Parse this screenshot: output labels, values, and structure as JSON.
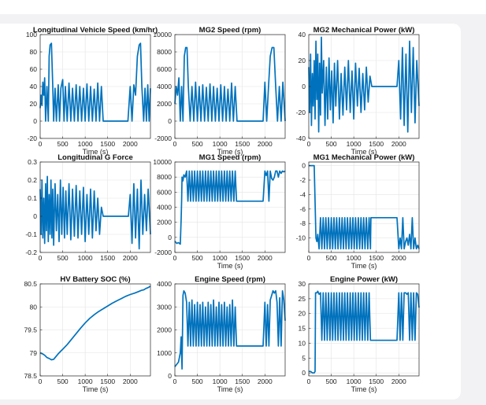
{
  "chart_data": [
    {
      "type": "line",
      "title": "Longitudinal Vehicle Speed (km/hr)",
      "xlabel": "Time (s)",
      "xlim": [
        0,
        2450
      ],
      "xticks": [
        0,
        500,
        1000,
        1500,
        2000
      ],
      "ylim": [
        -20,
        100
      ],
      "yticks": [
        -20,
        0,
        20,
        40,
        60,
        80,
        100
      ],
      "grid": true,
      "x": [
        0,
        20,
        40,
        60,
        80,
        100,
        120,
        150,
        180,
        200,
        220,
        250,
        280,
        300,
        330,
        360,
        400,
        430,
        460,
        500,
        530,
        560,
        600,
        640,
        680,
        720,
        760,
        800,
        840,
        880,
        920,
        960,
        1000,
        1040,
        1080,
        1120,
        1160,
        1200,
        1240,
        1280,
        1320,
        1360,
        1400,
        1500,
        1600,
        1700,
        1800,
        1900,
        1950,
        2000,
        2040,
        2080,
        2120,
        2160,
        2200,
        2230,
        2260,
        2300,
        2330,
        2360,
        2390,
        2420,
        2450
      ],
      "values": [
        15,
        30,
        18,
        45,
        30,
        50,
        0,
        40,
        0,
        75,
        88,
        90,
        40,
        0,
        38,
        0,
        42,
        0,
        38,
        48,
        0,
        40,
        0,
        44,
        0,
        38,
        0,
        42,
        0,
        40,
        0,
        38,
        0,
        43,
        0,
        40,
        0,
        37,
        0,
        44,
        0,
        40,
        0,
        0,
        0,
        0,
        0,
        0,
        0,
        40,
        0,
        42,
        30,
        75,
        88,
        90,
        40,
        0,
        38,
        0,
        42,
        0,
        38
      ]
    },
    {
      "type": "line",
      "title": "MG2 Speed (rpm)",
      "xlabel": "Time (s)",
      "xlim": [
        0,
        2450
      ],
      "xticks": [
        0,
        500,
        1000,
        1500,
        2000
      ],
      "ylim": [
        -2000,
        10000
      ],
      "yticks": [
        -2000,
        0,
        2000,
        4000,
        6000,
        8000,
        10000
      ],
      "grid": true,
      "x": [
        0,
        30,
        60,
        90,
        120,
        150,
        180,
        210,
        240,
        270,
        300,
        340,
        380,
        420,
        460,
        500,
        540,
        580,
        620,
        660,
        700,
        740,
        780,
        820,
        860,
        900,
        940,
        980,
        1020,
        1060,
        1100,
        1140,
        1180,
        1220,
        1260,
        1300,
        1340,
        1380,
        1500,
        1600,
        1700,
        1800,
        1900,
        1960,
        2000,
        2040,
        2080,
        2120,
        2160,
        2200,
        2240,
        2280,
        2320,
        2360,
        2400,
        2450
      ],
      "values": [
        2000,
        4000,
        3000,
        5000,
        0,
        4000,
        0,
        7500,
        8500,
        8500,
        4000,
        0,
        4000,
        0,
        4500,
        0,
        4000,
        0,
        4200,
        0,
        3900,
        0,
        4300,
        0,
        4000,
        0,
        3800,
        0,
        4200,
        0,
        4000,
        0,
        3700,
        0,
        4400,
        0,
        4000,
        0,
        0,
        0,
        0,
        0,
        0,
        0,
        4500,
        0,
        4000,
        7500,
        8500,
        8500,
        4000,
        0,
        4000,
        0,
        4500,
        0
      ]
    },
    {
      "type": "line",
      "title": "MG2 Mechanical Power (kW)",
      "xlabel": "Time (s)",
      "xlim": [
        0,
        2450
      ],
      "xticks": [
        0,
        500,
        1000,
        1500,
        2000
      ],
      "ylim": [
        -40,
        40
      ],
      "yticks": [
        -40,
        -20,
        0,
        20,
        40
      ],
      "grid": true,
      "x": [
        0,
        20,
        40,
        60,
        80,
        100,
        120,
        140,
        160,
        180,
        200,
        220,
        240,
        260,
        280,
        300,
        330,
        360,
        390,
        420,
        450,
        480,
        510,
        540,
        570,
        600,
        640,
        680,
        720,
        760,
        800,
        840,
        880,
        920,
        960,
        1000,
        1040,
        1080,
        1120,
        1160,
        1200,
        1240,
        1280,
        1320,
        1360,
        1400,
        1500,
        1600,
        1700,
        1800,
        1900,
        1960,
        2000,
        2040,
        2080,
        2120,
        2160,
        2200,
        2240,
        2280,
        2320,
        2360,
        2400,
        2450
      ],
      "values": [
        15,
        -20,
        25,
        -30,
        10,
        -15,
        20,
        -25,
        35,
        -10,
        25,
        -35,
        18,
        -22,
        38,
        -5,
        20,
        -30,
        15,
        -25,
        22,
        -18,
        12,
        -28,
        18,
        -15,
        20,
        -25,
        10,
        -22,
        15,
        -18,
        20,
        -20,
        12,
        -25,
        18,
        -15,
        14,
        -20,
        10,
        -18,
        15,
        -12,
        8,
        0,
        0,
        0,
        0,
        0,
        0,
        0,
        20,
        -25,
        30,
        -30,
        25,
        -35,
        35,
        -20,
        30,
        -28,
        20,
        -15
      ]
    },
    {
      "type": "line",
      "title": "Longitudinal G Force",
      "xlabel": "",
      "xlim": [
        0,
        2450
      ],
      "xticks": [
        0,
        500,
        1000,
        1500,
        2000
      ],
      "ylim": [
        -0.2,
        0.3
      ],
      "yticks": [
        -0.2,
        -0.1,
        0,
        0.1,
        0.2,
        0.3
      ],
      "grid": true,
      "x": [
        0,
        20,
        40,
        60,
        80,
        100,
        120,
        140,
        160,
        180,
        200,
        220,
        240,
        260,
        280,
        300,
        330,
        360,
        390,
        420,
        450,
        480,
        510,
        540,
        570,
        600,
        640,
        680,
        720,
        760,
        800,
        840,
        880,
        920,
        960,
        1000,
        1040,
        1080,
        1120,
        1160,
        1200,
        1240,
        1280,
        1320,
        1360,
        1400,
        1500,
        1600,
        1700,
        1800,
        1900,
        1960,
        2000,
        2040,
        2080,
        2120,
        2160,
        2200,
        2240,
        2280,
        2320,
        2360,
        2400,
        2450
      ],
      "values": [
        0.15,
        -0.1,
        0.2,
        -0.12,
        0.1,
        -0.15,
        0.18,
        -0.08,
        0.22,
        -0.14,
        0.12,
        -0.1,
        0.2,
        -0.12,
        0.15,
        -0.16,
        0.18,
        -0.08,
        0.12,
        -0.14,
        0.2,
        -0.1,
        0.16,
        -0.12,
        0.14,
        -0.1,
        0.18,
        -0.13,
        0.15,
        -0.11,
        0.17,
        -0.12,
        0.14,
        -0.1,
        0.16,
        -0.14,
        0.12,
        -0.1,
        0.15,
        -0.12,
        0.14,
        -0.08,
        0.1,
        -0.1,
        0.05,
        0,
        0,
        0,
        0,
        0,
        0,
        0,
        0.12,
        -0.15,
        0.18,
        -0.12,
        0.15,
        -0.18,
        0.2,
        -0.1,
        0.12,
        -0.08,
        0.15,
        -0.1
      ]
    },
    {
      "type": "line",
      "title": "MG1 Speed (rpm)",
      "xlabel": "Time (s)",
      "xlim": [
        0,
        2450
      ],
      "xticks": [
        0,
        500,
        1000,
        1500,
        2000
      ],
      "ylim": [
        -2000,
        10000
      ],
      "yticks": [
        -2000,
        0,
        2000,
        4000,
        6000,
        8000,
        10000
      ],
      "grid": true,
      "x": [
        0,
        40,
        80,
        120,
        140,
        150,
        160,
        180,
        200,
        230,
        260,
        290,
        320,
        350,
        380,
        410,
        440,
        470,
        500,
        530,
        560,
        590,
        620,
        650,
        680,
        710,
        740,
        770,
        800,
        830,
        860,
        890,
        920,
        950,
        980,
        1010,
        1040,
        1070,
        1100,
        1130,
        1160,
        1190,
        1220,
        1250,
        1280,
        1310,
        1340,
        1370,
        1380,
        1500,
        1700,
        1900,
        1960,
        2000,
        2030,
        2060,
        2090,
        2120,
        2150,
        2180,
        2210,
        2240,
        2270,
        2300,
        2330,
        2360,
        2390,
        2420,
        2450
      ],
      "values": [
        -500,
        -800,
        -700,
        -900,
        2500,
        5000,
        8000,
        7500,
        8300,
        8000,
        8800,
        4800,
        8800,
        4800,
        8800,
        4800,
        8800,
        4800,
        8800,
        4800,
        8800,
        4800,
        8800,
        4800,
        8800,
        4800,
        8800,
        4800,
        8800,
        4800,
        8800,
        4800,
        8800,
        4800,
        8800,
        4800,
        8800,
        4800,
        8800,
        4800,
        8800,
        4800,
        8800,
        4800,
        8800,
        4800,
        8800,
        4800,
        4800,
        4800,
        4800,
        4800,
        4800,
        8800,
        8200,
        8800,
        4800,
        8800,
        7800,
        7600,
        8000,
        8800,
        8800,
        8000,
        8800,
        8500,
        8800,
        8700,
        8800
      ]
    },
    {
      "type": "line",
      "title": "MG1 Mechanical Power (kW)",
      "xlabel": "Time (s)",
      "xlim": [
        0,
        2450
      ],
      "xticks": [
        0,
        500,
        1000,
        1500,
        2000
      ],
      "ylim": [
        -12,
        0.5
      ],
      "yticks": [
        -10,
        -8,
        -6,
        -4,
        -2,
        0
      ],
      "grid": true,
      "x": [
        0,
        40,
        80,
        120,
        140,
        160,
        180,
        200,
        230,
        260,
        290,
        320,
        350,
        380,
        410,
        440,
        470,
        500,
        530,
        560,
        590,
        620,
        650,
        680,
        710,
        740,
        770,
        800,
        830,
        860,
        890,
        920,
        950,
        980,
        1010,
        1040,
        1070,
        1100,
        1130,
        1160,
        1190,
        1220,
        1250,
        1280,
        1310,
        1340,
        1370,
        1380,
        1500,
        1700,
        1900,
        1960,
        2000,
        2030,
        2060,
        2090,
        2120,
        2150,
        2180,
        2210,
        2240,
        2270,
        2300,
        2330,
        2360,
        2390,
        2420,
        2450
      ],
      "values": [
        0,
        0,
        0,
        0,
        -5,
        -10,
        -10.5,
        -9.5,
        -11.5,
        -7.2,
        -11.5,
        -7.2,
        -11.5,
        -7.2,
        -11.5,
        -7.2,
        -11.5,
        -7.2,
        -11.5,
        -7.2,
        -11.5,
        -7.2,
        -11.5,
        -7.2,
        -11.5,
        -7.2,
        -11.5,
        -7.2,
        -11.5,
        -7.2,
        -11.5,
        -7.2,
        -11.5,
        -7.2,
        -11.5,
        -7.2,
        -11.5,
        -7.2,
        -11.5,
        -7.2,
        -11.5,
        -7.2,
        -11.5,
        -7.2,
        -11.5,
        -7.2,
        -11.5,
        -7.2,
        -7.2,
        -7.2,
        -7.2,
        -7.2,
        -11.5,
        -10,
        -11.5,
        -7.2,
        -11.5,
        -10.5,
        -10,
        -11,
        -9.5,
        -11.5,
        -7.2,
        -11.5,
        -10,
        -11.5,
        -11,
        -11.5
      ]
    },
    {
      "type": "line",
      "title": "HV Battery SOC (%)",
      "xlabel": "Time (s)",
      "xlim": [
        0,
        2450
      ],
      "xticks": [
        0,
        500,
        1000,
        1500,
        2000
      ],
      "ylim": [
        78.5,
        80.5
      ],
      "yticks": [
        78.5,
        79,
        79.5,
        80,
        80.5
      ],
      "grid": true,
      "x": [
        0,
        50,
        100,
        150,
        200,
        250,
        300,
        350,
        400,
        450,
        500,
        600,
        700,
        800,
        900,
        1000,
        1100,
        1200,
        1300,
        1400,
        1500,
        1600,
        1700,
        1800,
        1900,
        2000,
        2100,
        2200,
        2250,
        2300,
        2350,
        2400,
        2450
      ],
      "values": [
        79.0,
        78.98,
        78.95,
        78.9,
        78.88,
        78.85,
        78.86,
        78.92,
        78.98,
        79.03,
        79.08,
        79.18,
        79.3,
        79.42,
        79.54,
        79.65,
        79.75,
        79.83,
        79.9,
        79.96,
        80.02,
        80.08,
        80.13,
        80.18,
        80.23,
        80.27,
        80.3,
        80.34,
        80.36,
        80.37,
        80.4,
        80.42,
        80.45
      ]
    },
    {
      "type": "line",
      "title": "Engine Speed (rpm)",
      "xlabel": "Time (s)",
      "xlim": [
        0,
        2450
      ],
      "xticks": [
        0,
        500,
        1000,
        1500,
        2000
      ],
      "ylim": [
        0,
        4000
      ],
      "yticks": [
        0,
        1000,
        2000,
        3000,
        4000
      ],
      "grid": true,
      "x": [
        0,
        40,
        80,
        120,
        140,
        160,
        180,
        200,
        230,
        260,
        290,
        320,
        350,
        380,
        410,
        440,
        470,
        500,
        530,
        560,
        590,
        620,
        650,
        680,
        710,
        740,
        770,
        800,
        830,
        860,
        890,
        920,
        950,
        980,
        1010,
        1040,
        1070,
        1100,
        1130,
        1160,
        1190,
        1220,
        1250,
        1280,
        1310,
        1340,
        1370,
        1380,
        1500,
        1700,
        1900,
        1960,
        2000,
        2030,
        2060,
        2090,
        2120,
        2150,
        2180,
        2210,
        2240,
        2270,
        2300,
        2330,
        2360,
        2390,
        2420,
        2450
      ],
      "values": [
        400,
        500,
        600,
        1000,
        1700,
        300,
        3500,
        3700,
        3600,
        3200,
        1300,
        3200,
        1300,
        3300,
        1300,
        3100,
        1300,
        3200,
        1300,
        3100,
        1300,
        3200,
        1300,
        3000,
        1300,
        3200,
        1300,
        3100,
        1300,
        3300,
        1300,
        3000,
        1300,
        3200,
        1300,
        3100,
        1300,
        3200,
        1300,
        3000,
        1300,
        3100,
        1300,
        3300,
        1300,
        3000,
        1300,
        1300,
        1300,
        1300,
        1300,
        1300,
        3200,
        1300,
        3100,
        1300,
        3300,
        3500,
        3700,
        3600,
        3700,
        3200,
        1300,
        3400,
        1300,
        3700,
        3300,
        2400
      ]
    },
    {
      "type": "line",
      "title": "Engine Power (kW)",
      "xlabel": "Time (s)",
      "xlim": [
        0,
        2450
      ],
      "xticks": [
        0,
        500,
        1000,
        1500,
        2000
      ],
      "ylim": [
        -1,
        30
      ],
      "yticks": [
        0,
        5,
        10,
        15,
        20,
        25,
        30
      ],
      "grid": true,
      "x": [
        0,
        40,
        80,
        120,
        140,
        150,
        160,
        180,
        200,
        230,
        260,
        290,
        320,
        350,
        380,
        410,
        440,
        470,
        500,
        530,
        560,
        590,
        620,
        650,
        680,
        710,
        740,
        770,
        800,
        830,
        860,
        890,
        920,
        950,
        980,
        1010,
        1040,
        1070,
        1100,
        1130,
        1160,
        1190,
        1220,
        1250,
        1280,
        1310,
        1340,
        1370,
        1380,
        1500,
        1700,
        1900,
        1960,
        2000,
        2030,
        2060,
        2090,
        2120,
        2150,
        2180,
        2210,
        2240,
        2270,
        2300,
        2330,
        2360,
        2390,
        2420,
        2450
      ],
      "values": [
        0.5,
        0.5,
        0,
        0,
        0.5,
        27,
        27,
        27,
        27.5,
        26.5,
        27,
        11,
        27,
        11,
        27,
        11,
        27,
        11,
        27,
        11,
        27,
        11,
        27,
        11,
        27,
        11,
        27,
        11,
        27,
        11,
        27,
        11,
        27,
        11,
        27,
        11,
        27,
        11,
        27,
        11,
        27,
        11,
        27,
        11,
        27,
        11,
        27,
        11,
        11,
        11,
        11,
        11,
        11,
        27,
        11,
        27,
        11,
        27,
        27,
        26.5,
        27,
        11,
        27,
        11,
        27,
        11,
        27,
        26.5,
        22
      ]
    }
  ]
}
